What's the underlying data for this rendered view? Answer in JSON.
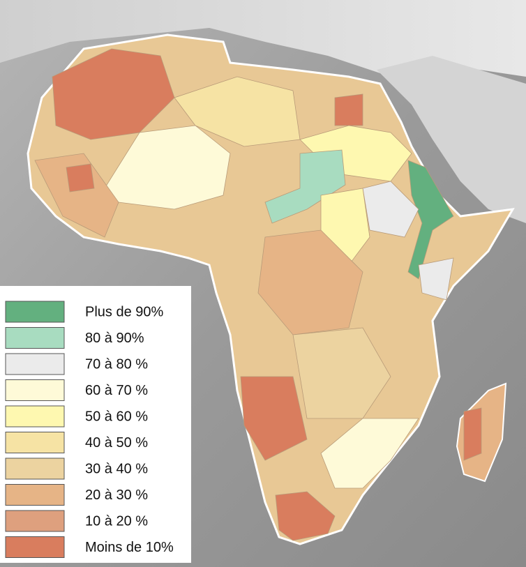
{
  "legend": {
    "items": [
      {
        "label": "Plus de 90%",
        "color": "#63b07f"
      },
      {
        "label": "80 à 90%",
        "color": "#a8dcc0"
      },
      {
        "label": "70 à 80 %",
        "color": "#ebebeb"
      },
      {
        "label": "60 à 70 %",
        "color": "#fefad8"
      },
      {
        "label": "50 à 60 %",
        "color": "#fef8b0"
      },
      {
        "label": "40 à 50 %",
        "color": "#f6e3a4"
      },
      {
        "label": "30 à 40 %",
        "color": "#ecd3a0"
      },
      {
        "label": "20 à 30 %",
        "color": "#e6b486"
      },
      {
        "label": "10 à 20 %",
        "color": "#dea07e"
      },
      {
        "label": "Moins de 10%",
        "color": "#d97d5e"
      }
    ]
  }
}
